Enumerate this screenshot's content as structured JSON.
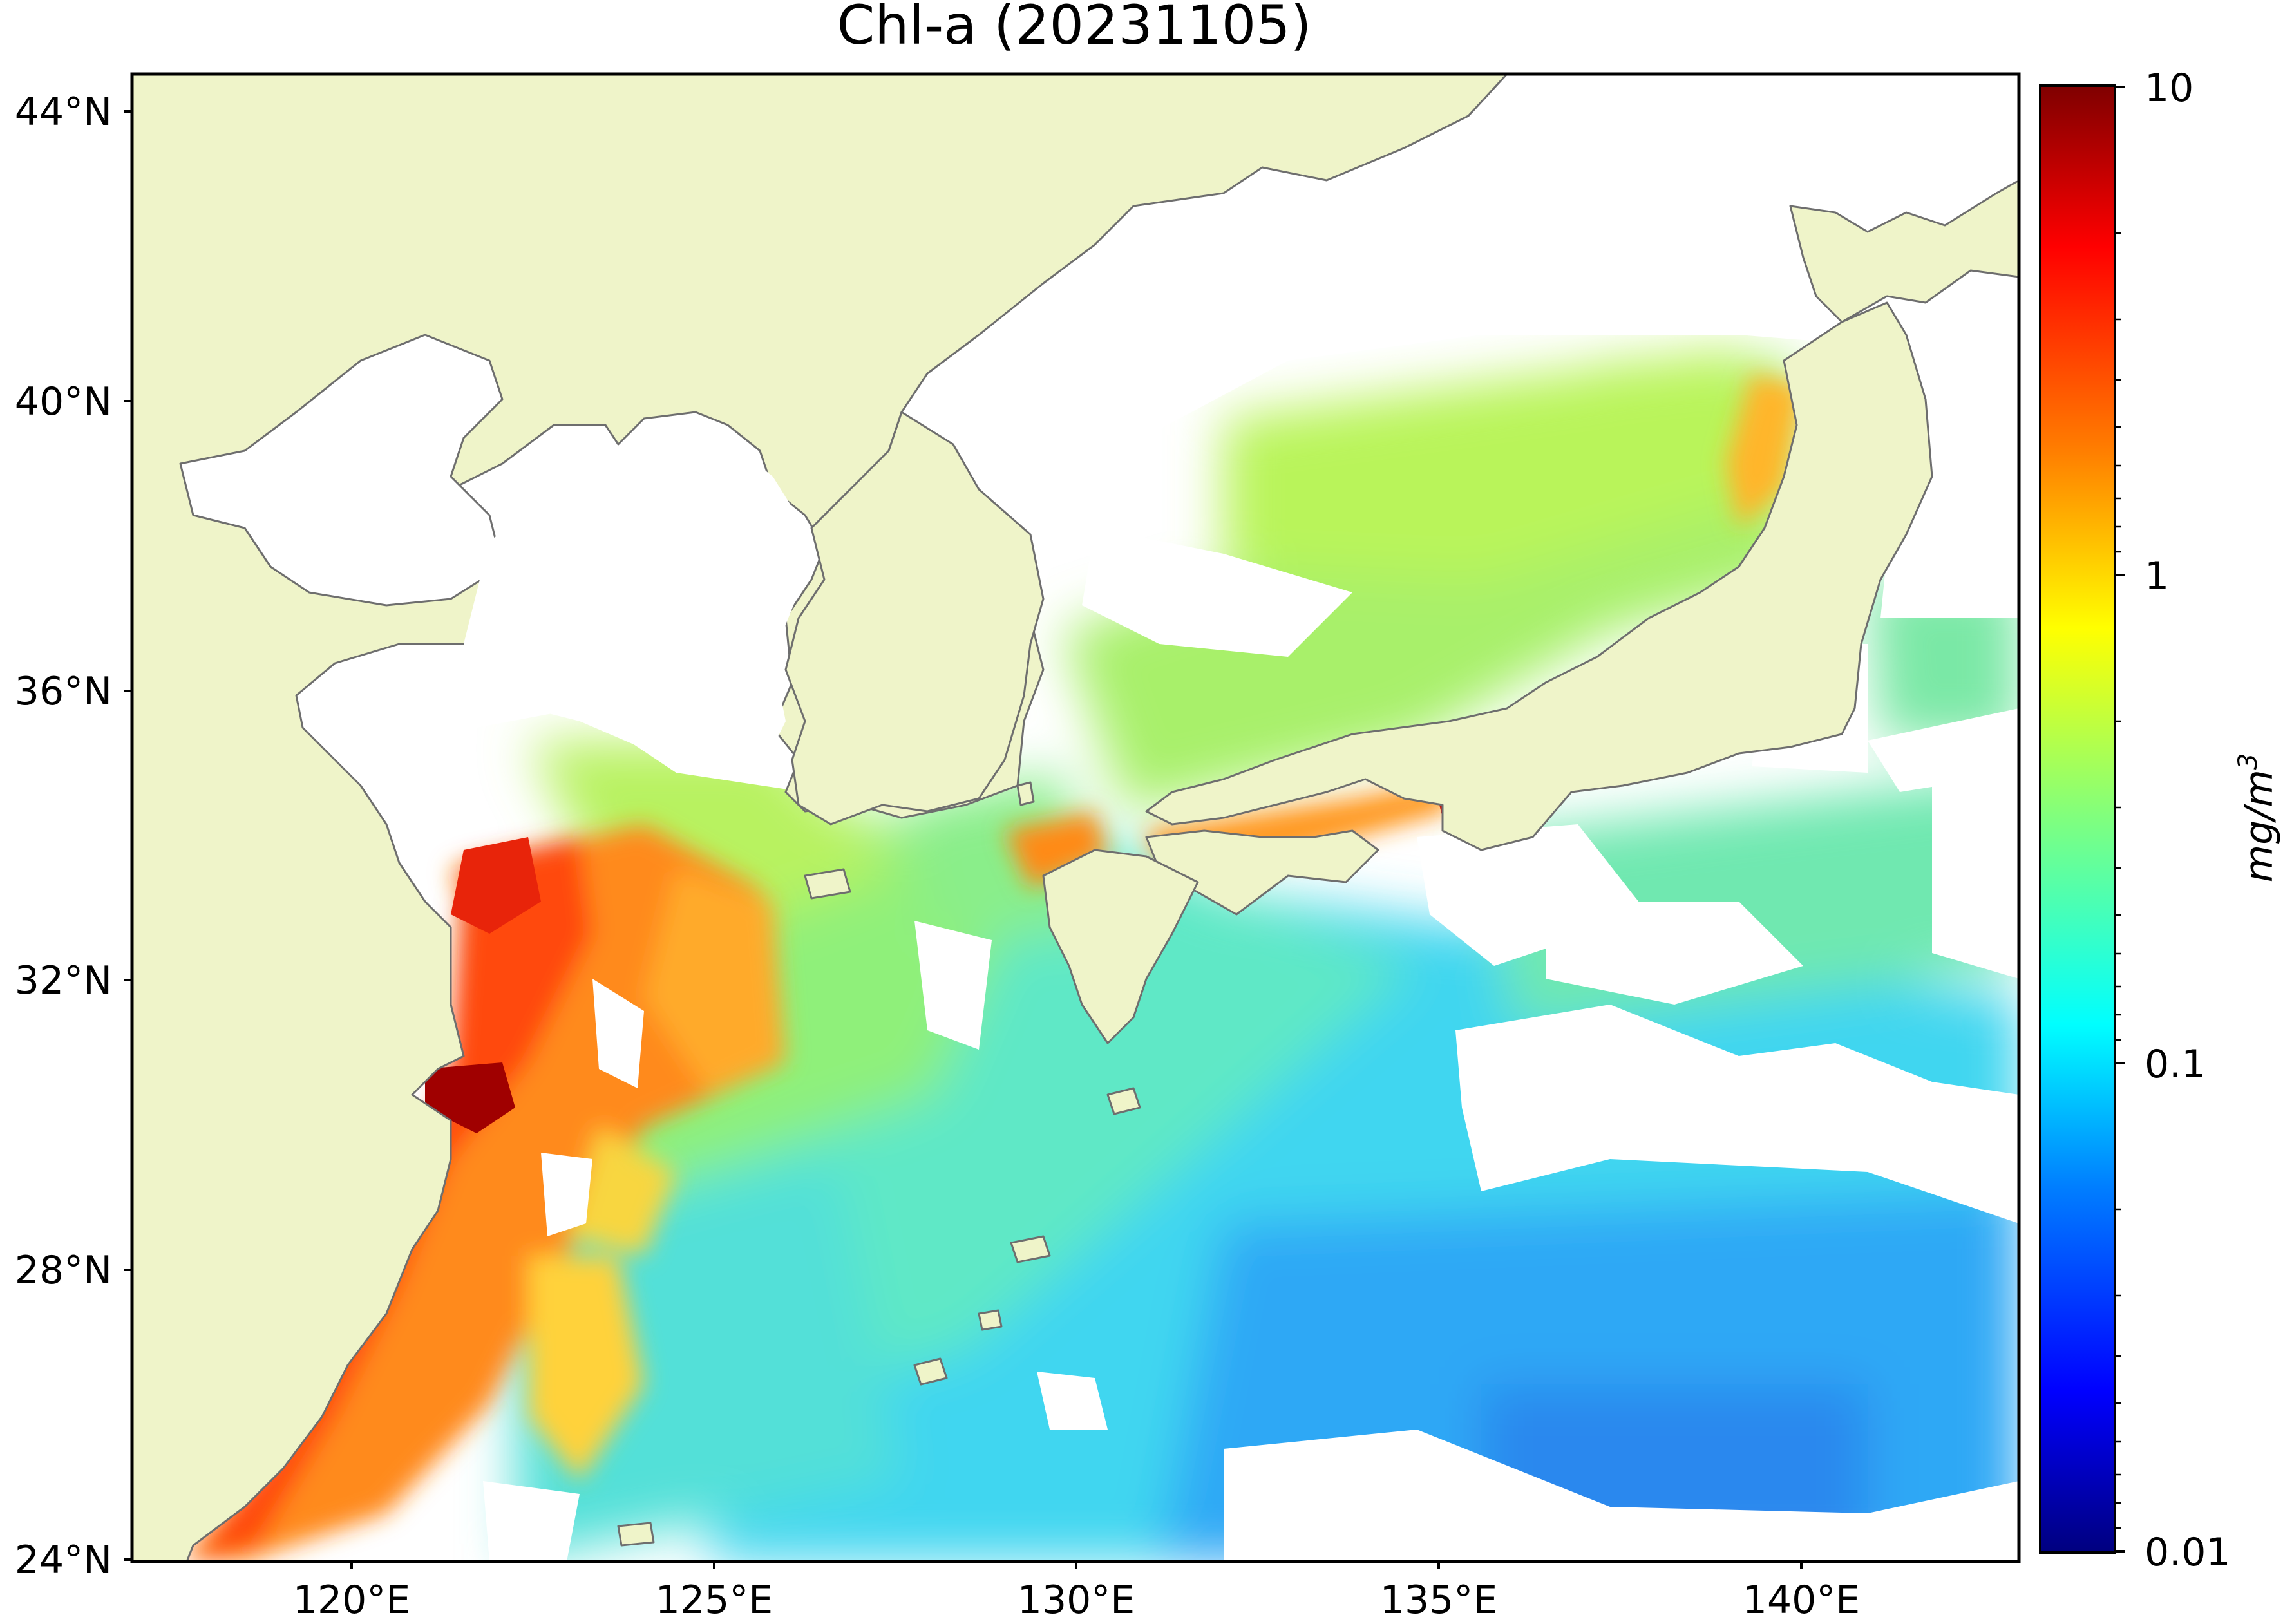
{
  "title": "Chl-a (20231105)",
  "map": {
    "lon_range": [
      117,
      143
    ],
    "lat_range": [
      24,
      44.5
    ],
    "lat_ticks": [
      "44°N",
      "40°N",
      "36°N",
      "32°N",
      "28°N",
      "24°N"
    ],
    "lon_ticks": [
      "120°E",
      "125°E",
      "130°E",
      "135°E",
      "140°E"
    ],
    "colors": {
      "land": "#eff4c9",
      "coastline": "#6e6e6e",
      "no_data": "#ffffff",
      "frame": "#000000"
    }
  },
  "colorbar": {
    "label": "mg/m",
    "label_superscript": "3",
    "scale": "log",
    "range": [
      0.01,
      10
    ],
    "tick_labels": [
      "10",
      "1",
      "0.1",
      "0.01"
    ],
    "colormap": "jet",
    "colormap_stops": [
      "#00007f",
      "#0000ff",
      "#007fff",
      "#00ffff",
      "#7fff7f",
      "#ffff00",
      "#ff7f00",
      "#ff0000",
      "#7f0000"
    ]
  }
}
